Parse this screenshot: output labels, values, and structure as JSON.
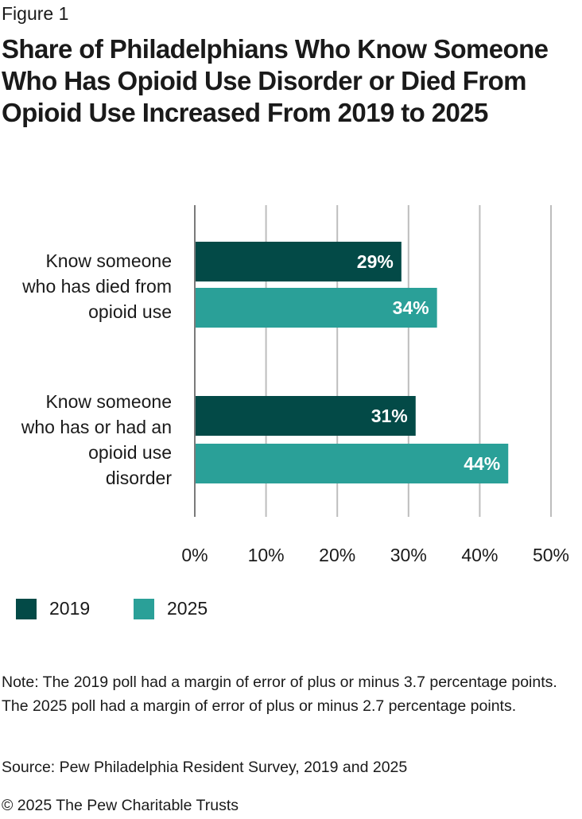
{
  "figure_label": "Figure 1",
  "chart_data": {
    "type": "bar",
    "orientation": "horizontal",
    "title": "Share of Philadelphians Who Know Someone Who Has Opioid Use Disorder or Died From Opioid Use Increased From 2019 to 2025",
    "categories": [
      "Know someone who has died from opioid use",
      "Know someone who has or had an opioid use disorder"
    ],
    "series": [
      {
        "name": "2019",
        "values": [
          29,
          31
        ],
        "labels": [
          "29%",
          "31%"
        ],
        "color": "#034a47"
      },
      {
        "name": "2025",
        "values": [
          34,
          44
        ],
        "labels": [
          "34%",
          "44%"
        ],
        "color": "#2aa098"
      }
    ],
    "xlim": [
      0,
      50
    ],
    "ticks": [
      0,
      10,
      20,
      30,
      40,
      50
    ],
    "tick_labels": [
      "0%",
      "10%",
      "20%",
      "30%",
      "40%",
      "50%"
    ],
    "grid": true,
    "legend_position": "bottom-left"
  },
  "category_lines": [
    [
      "Know someone",
      "who has died from",
      "opioid use"
    ],
    [
      "Know someone",
      "who has or had an",
      "opioid use",
      "disorder"
    ]
  ],
  "note": "Note: The 2019 poll had a margin of error of plus or minus 3.7 percentage points. The 2025 poll had a margin of error of plus or minus 2.7 percentage points.",
  "source": "Source: Pew Philadelphia Resident Survey, 2019 and 2025",
  "copyright": "© 2025 The Pew Charitable Trusts"
}
